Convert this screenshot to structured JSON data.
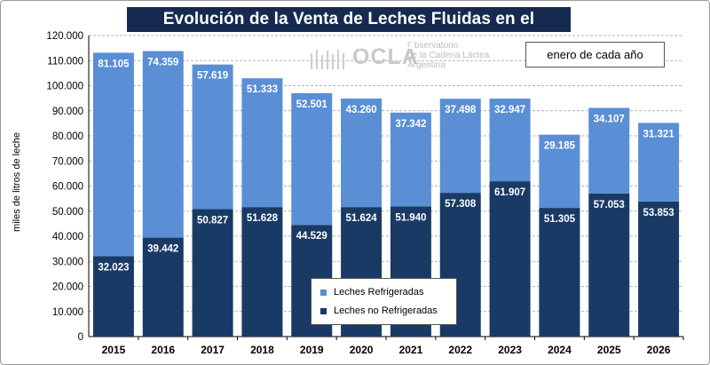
{
  "title": "Evolución de la Venta de Leches Fluidas en el Mercado Interno",
  "period_note": "enero de cada año",
  "watermark": {
    "name": "OCLA",
    "line1": "Observatorio",
    "line2": "de la Cadena Láctea",
    "line3": "Argentina"
  },
  "colors": {
    "refrigeradas": "#5a8fd6",
    "no_refrigeradas": "#1a3a66",
    "title_bg": "#162a50"
  },
  "chart_data": {
    "type": "bar",
    "stacked": true,
    "title": "Evolución de la Venta de Leches Fluidas en el Mercado Interno",
    "ylabel": "miles de litros de leche",
    "xlabel": "",
    "ylim": [
      0,
      120000
    ],
    "yticks": [
      "0",
      "10.000",
      "20.000",
      "30.000",
      "40.000",
      "50.000",
      "60.000",
      "70.000",
      "80.000",
      "90.000",
      "100.000",
      "110.000",
      "120.000"
    ],
    "grid": "horizontal dashed",
    "legend_position": "bottom-center",
    "categories": [
      "2015",
      "2016",
      "2017",
      "2018",
      "2019",
      "2020",
      "2021",
      "2022",
      "2023",
      "2024",
      "2025",
      "2026"
    ],
    "series": [
      {
        "name": "Leches no Refrigeradas",
        "values": [
          32023,
          39442,
          50827,
          51628,
          44529,
          51624,
          51940,
          57308,
          61907,
          51305,
          57053,
          53853
        ],
        "labels": [
          "32.023",
          "39.442",
          "50.827",
          "51.628",
          "44.529",
          "51.624",
          "51.940",
          "57.308",
          "61.907",
          "51.305",
          "57.053",
          "53.853"
        ]
      },
      {
        "name": "Leches Refrigeradas",
        "values": [
          81105,
          74359,
          57619,
          51333,
          52501,
          43260,
          37342,
          37498,
          32947,
          29185,
          34107,
          31321
        ],
        "labels": [
          "81.105",
          "74.359",
          "57.619",
          "51.333",
          "52.501",
          "43.260",
          "37.342",
          "37.498",
          "32.947",
          "29.185",
          "34.107",
          "31.321"
        ]
      }
    ]
  }
}
